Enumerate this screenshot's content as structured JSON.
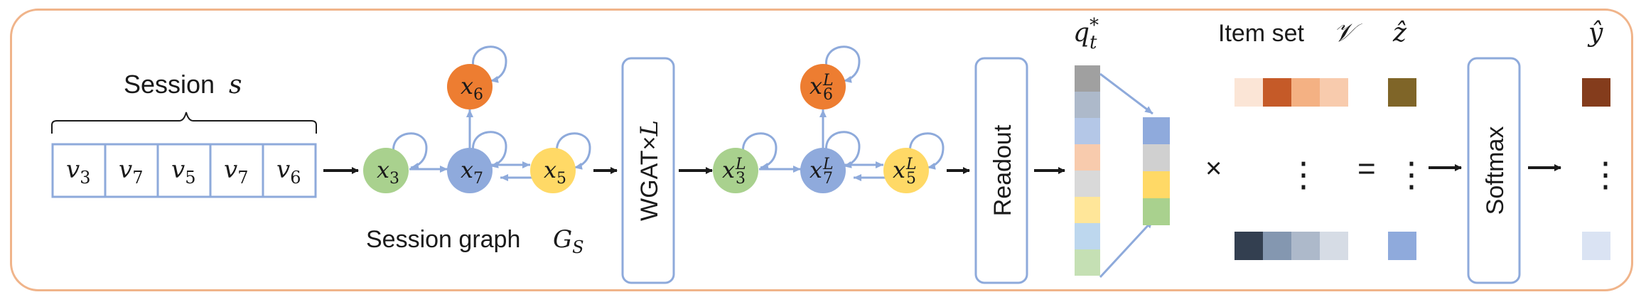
{
  "session": {
    "label": "Session",
    "var": "s",
    "cells": [
      {
        "base": "v",
        "sub": "3"
      },
      {
        "base": "v",
        "sub": "7"
      },
      {
        "base": "v",
        "sub": "5"
      },
      {
        "base": "v",
        "sub": "7"
      },
      {
        "base": "v",
        "sub": "6"
      }
    ]
  },
  "graph": {
    "label": "Session graph",
    "var": "G",
    "var_sub": "S",
    "nodes": {
      "x3": {
        "base": "x",
        "sub": "3"
      },
      "x7": {
        "base": "x",
        "sub": "7"
      },
      "x5": {
        "base": "x",
        "sub": "5"
      },
      "x6": {
        "base": "x",
        "sub": "6"
      }
    }
  },
  "wgat": {
    "label": "WGAT×",
    "var": "L"
  },
  "graph_out": {
    "nodes": {
      "x3": {
        "base": "x",
        "sub": "3",
        "sup": "L"
      },
      "x7": {
        "base": "x",
        "sub": "7",
        "sup": "L"
      },
      "x5": {
        "base": "x",
        "sub": "5",
        "sup": "L"
      },
      "x6": {
        "base": "x",
        "sub": "6",
        "sup": "L"
      }
    }
  },
  "readout": {
    "label": "Readout"
  },
  "q": {
    "base": "q",
    "sub": "t",
    "sup": "*"
  },
  "item_set": {
    "label": "Item set",
    "var": "𝒱"
  },
  "z_hat": {
    "label": "ẑ"
  },
  "softmax": {
    "label": "Softmax"
  },
  "y_hat": {
    "label": "ŷ"
  },
  "ops": {
    "times": "×",
    "equals": "=",
    "dots": "⋮"
  },
  "colors": {
    "frame": "#f0b48a",
    "box_border": "#8eaadb",
    "node_green": "#a9d18e",
    "node_blue": "#8faadc",
    "node_yellow": "#ffd966",
    "node_orange": "#ed7d31",
    "q_column": [
      "#a0a0a0",
      "#adb9ca",
      "#b4c7e7",
      "#f8cbad",
      "#d9d9d9",
      "#ffe699",
      "#bdd7ee",
      "#c5e0b4"
    ],
    "pooled": [
      "#8faadc",
      "#d0d0d0",
      "#ffd966",
      "#a9d18e"
    ],
    "item_row_top": [
      "#fbe5d6",
      "#c55a28",
      "#f4b183",
      "#f8cbad"
    ],
    "item_row_bottom": [
      "#333f50",
      "#8497b0",
      "#adb9ca",
      "#d6dce5"
    ],
    "z_top": "#7f6528",
    "z_bottom": "#8faadc",
    "y_top": "#843c1c",
    "y_bottom": "#dae3f3"
  }
}
